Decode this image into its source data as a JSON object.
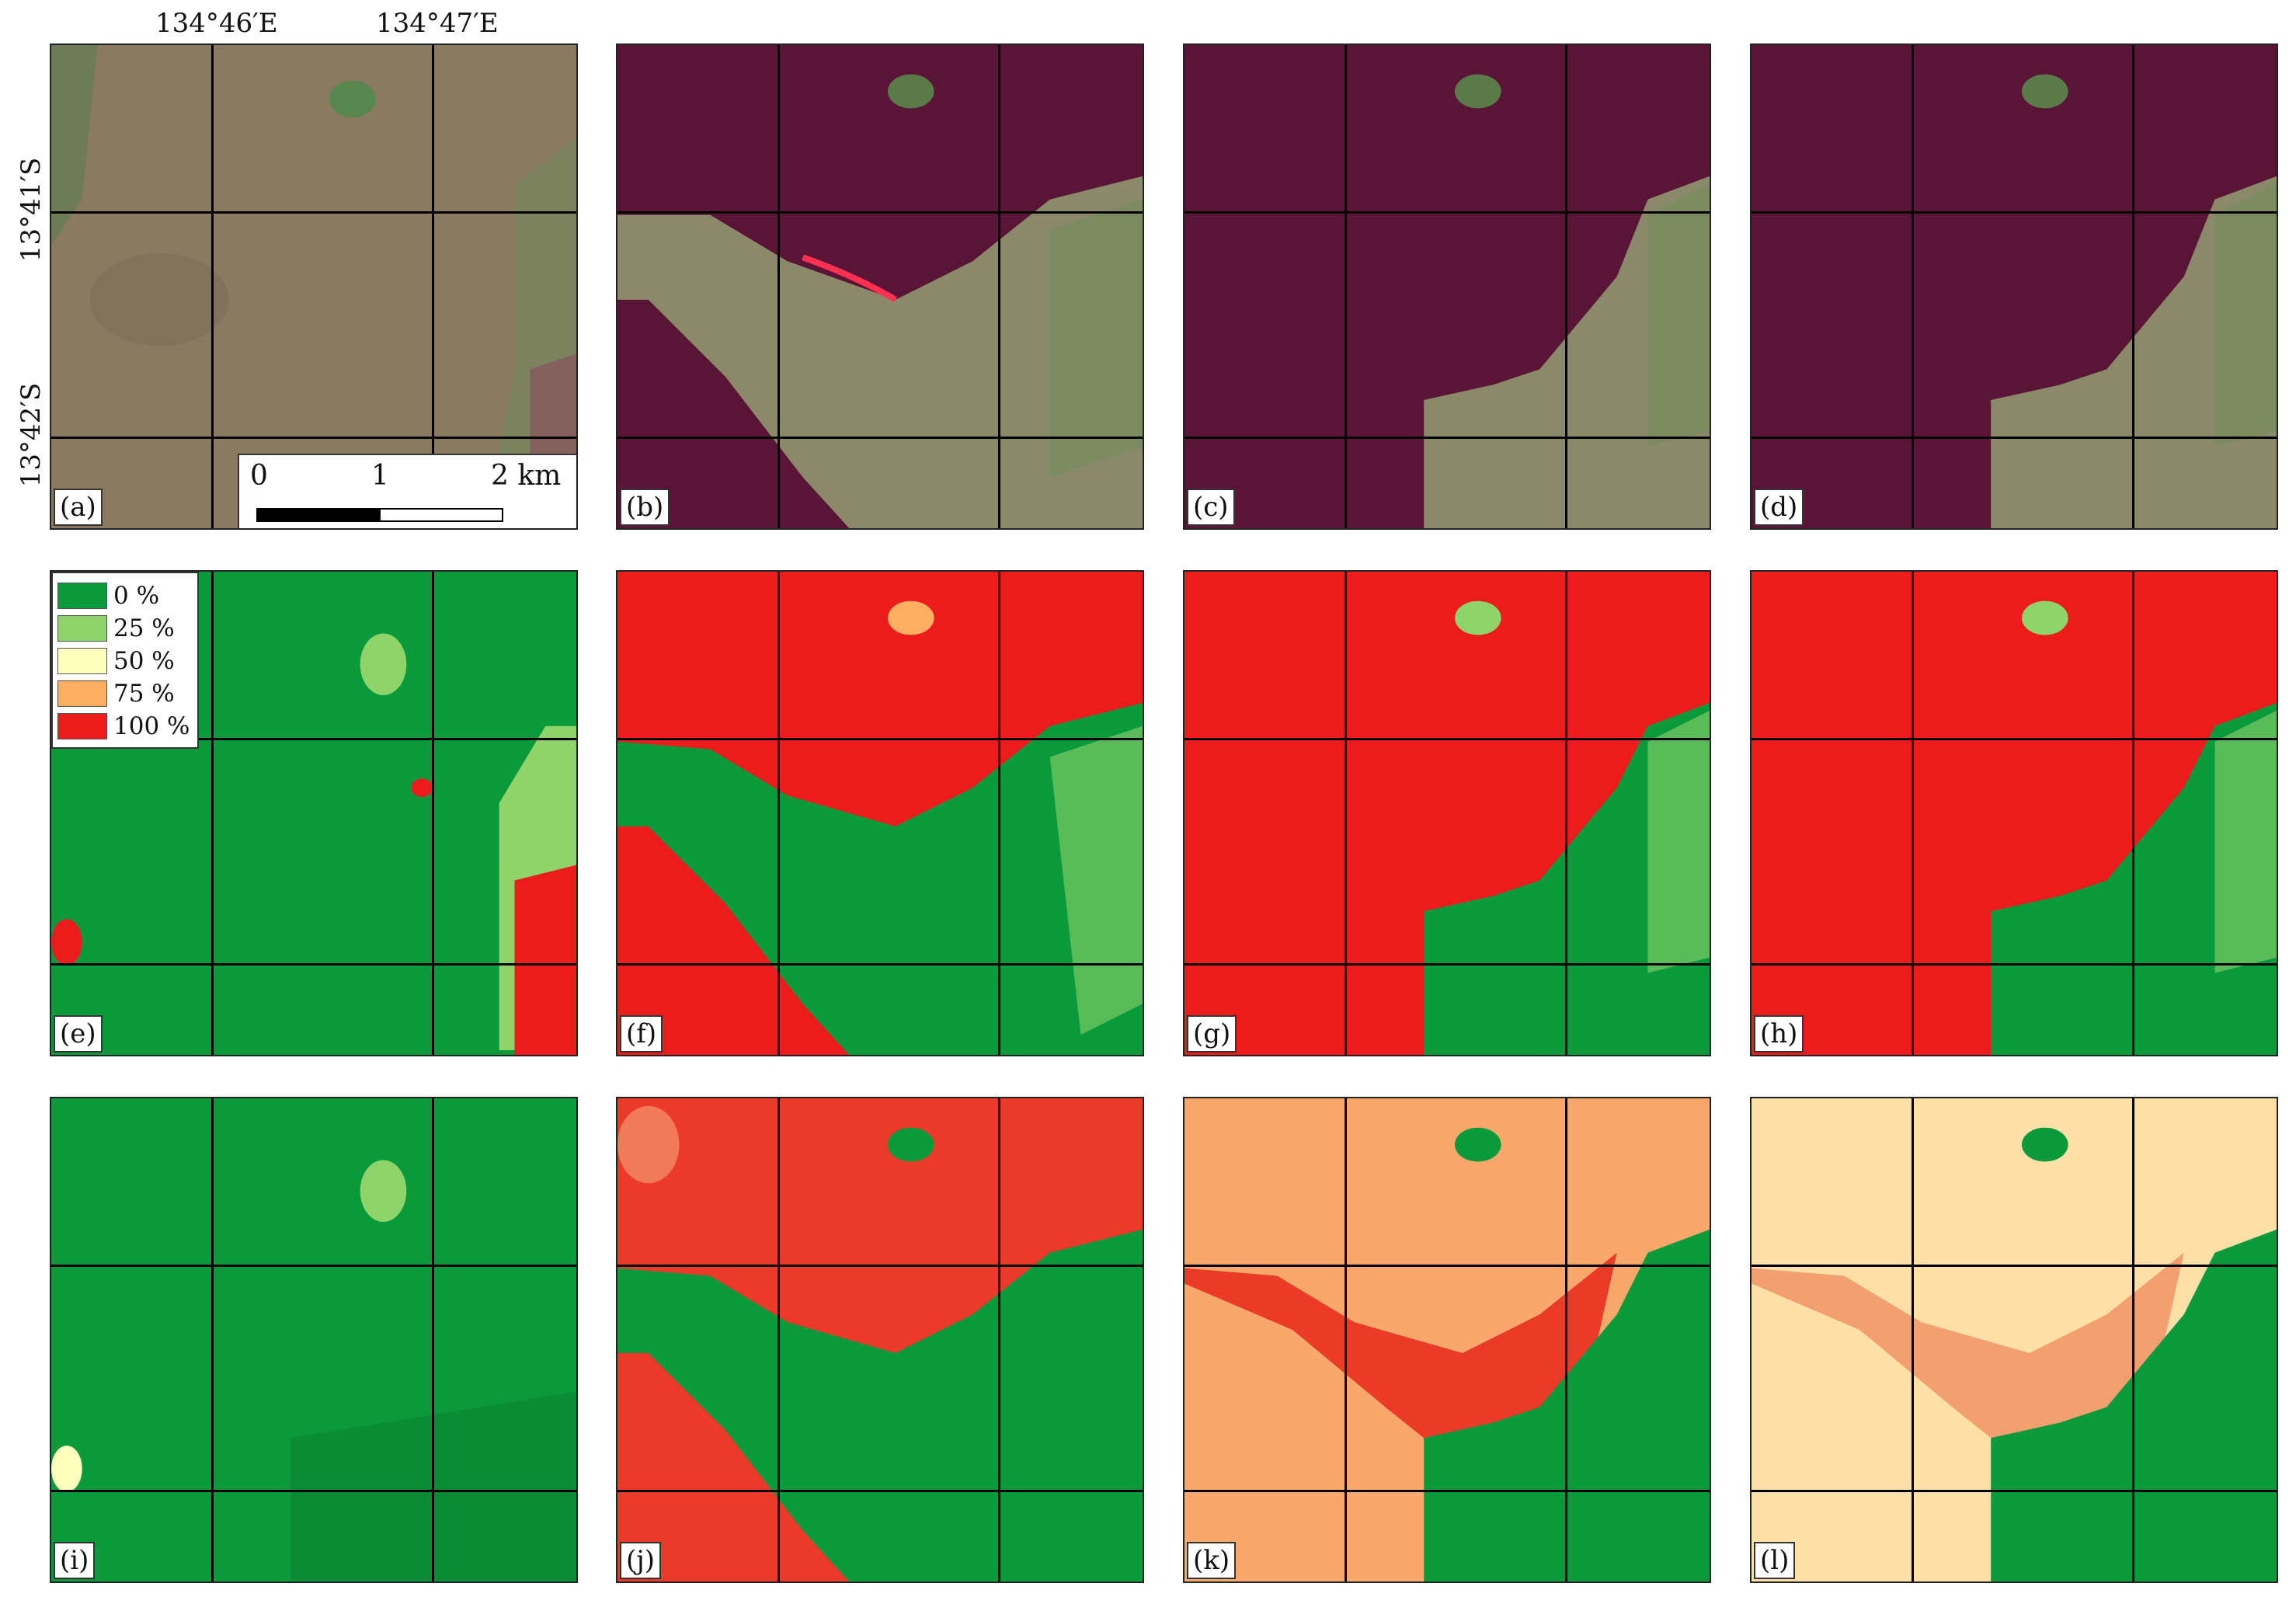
{
  "coordinates": {
    "longitudes": [
      "134°46′E",
      "134°47′E"
    ],
    "latitudes": [
      "13°41′S",
      "13°42′S"
    ]
  },
  "scale_bar": {
    "ticks": [
      "0",
      "1",
      "2 km"
    ]
  },
  "legend": {
    "items": [
      {
        "label": "0 %",
        "color": "#0a9a3c"
      },
      {
        "label": "25 %",
        "color": "#8fd46a"
      },
      {
        "label": "50 %",
        "color": "#ffffbe"
      },
      {
        "label": "75 %",
        "color": "#fdae61"
      },
      {
        "label": "100 %",
        "color": "#ed1c1c"
      }
    ]
  },
  "panels": [
    {
      "label": "(a)",
      "type": "satellite-preburn"
    },
    {
      "label": "(b)",
      "type": "satellite-burn"
    },
    {
      "label": "(c)",
      "type": "satellite-burn"
    },
    {
      "label": "(d)",
      "type": "satellite-burn"
    },
    {
      "label": "(e)",
      "type": "classified"
    },
    {
      "label": "(f)",
      "type": "classified"
    },
    {
      "label": "(g)",
      "type": "classified"
    },
    {
      "label": "(h)",
      "type": "classified"
    },
    {
      "label": "(i)",
      "type": "continuous"
    },
    {
      "label": "(j)",
      "type": "continuous"
    },
    {
      "label": "(k)",
      "type": "continuous"
    },
    {
      "label": "(l)",
      "type": "continuous"
    }
  ]
}
